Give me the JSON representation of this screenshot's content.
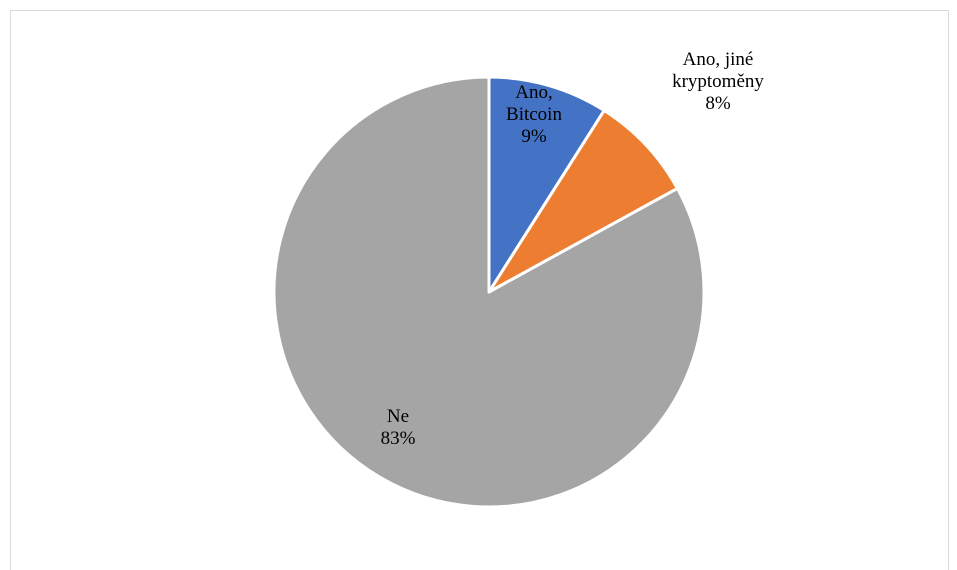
{
  "chart_data": {
    "type": "pie",
    "title": "",
    "start_angle_deg": 0,
    "direction": "clockwise",
    "slices": [
      {
        "label_lines": [
          "Ano,",
          "Bitcoin"
        ],
        "value": 9,
        "value_label": "9%",
        "color": "#4472C4"
      },
      {
        "label_lines": [
          "Ano, jiné",
          "kryptoměny"
        ],
        "value": 8,
        "value_label": "8%",
        "color": "#ED7D31"
      },
      {
        "label_lines": [
          "Ne"
        ],
        "value": 83,
        "value_label": "83%",
        "color": "#A5A5A5"
      }
    ],
    "legend": "none",
    "slice_border_color": "#ffffff"
  }
}
